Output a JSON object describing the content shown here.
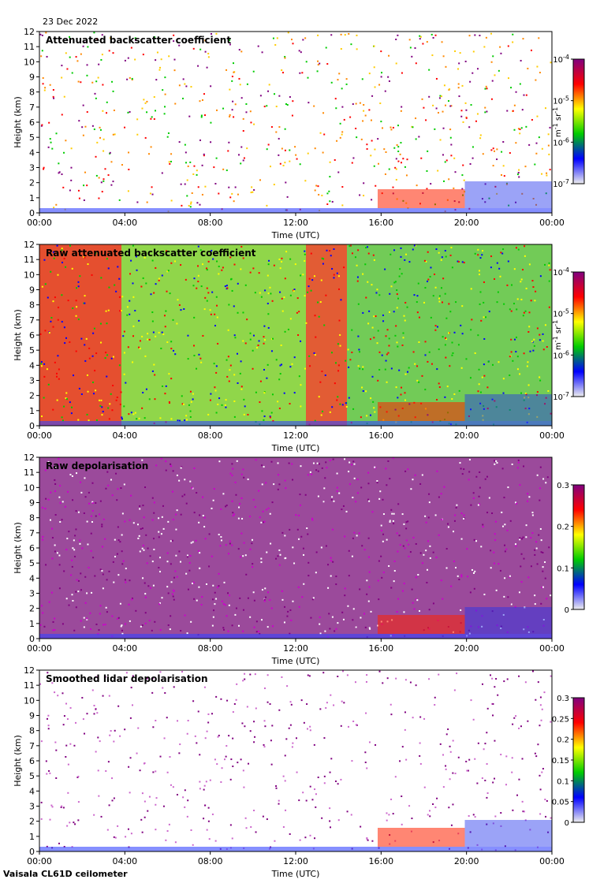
{
  "header": {
    "date": "23 Dec 2022"
  },
  "footer": {
    "instrument": "Vaisala CL61D ceilometer"
  },
  "colors": {
    "rainbow": [
      "#eeeeee",
      "#0000ff",
      "#00cc00",
      "#ffff00",
      "#ff0000",
      "#800080"
    ]
  },
  "chart_data": [
    {
      "type": "heatmap",
      "title": "Attenuated backscatter coefficient",
      "xlabel": "Time (UTC)",
      "ylabel": "Height (km)",
      "x_ticks": [
        "00:00",
        "04:00",
        "08:00",
        "12:00",
        "16:00",
        "20:00",
        "00:00"
      ],
      "y_ticks": [
        "0",
        "1",
        "2",
        "3",
        "4",
        "5",
        "6",
        "7",
        "8",
        "9",
        "10",
        "11",
        "12"
      ],
      "ylim": [
        0,
        12
      ],
      "colorbar": {
        "scale": "log",
        "range": [
          1e-07,
          0.0001
        ],
        "ticks": [
          {
            "base": "10",
            "exp": "-4"
          },
          {
            "base": "10",
            "exp": "-5"
          },
          {
            "base": "10",
            "exp": "-6"
          },
          {
            "base": "10",
            "exp": "-7"
          }
        ],
        "unit_parts": [
          "m",
          "-1",
          " sr",
          "-1"
        ]
      }
    },
    {
      "type": "heatmap",
      "title": "Raw attenuated backscatter coefficient",
      "xlabel": "Time (UTC)",
      "ylabel": "Height (km)",
      "x_ticks": [
        "00:00",
        "04:00",
        "08:00",
        "12:00",
        "16:00",
        "20:00",
        "00:00"
      ],
      "y_ticks": [
        "0",
        "1",
        "2",
        "3",
        "4",
        "5",
        "6",
        "7",
        "8",
        "9",
        "10",
        "11",
        "12"
      ],
      "ylim": [
        0,
        12
      ],
      "colorbar": {
        "scale": "log",
        "range": [
          1e-07,
          0.0001
        ],
        "ticks": [
          {
            "base": "10",
            "exp": "-4"
          },
          {
            "base": "10",
            "exp": "-5"
          },
          {
            "base": "10",
            "exp": "-6"
          },
          {
            "base": "10",
            "exp": "-7"
          }
        ],
        "unit_parts": [
          "m",
          "-1",
          " sr",
          "-1"
        ]
      }
    },
    {
      "type": "heatmap",
      "title": "Raw depolarisation",
      "xlabel": "Time (UTC)",
      "ylabel": "Height (km)",
      "x_ticks": [
        "00:00",
        "04:00",
        "08:00",
        "12:00",
        "16:00",
        "20:00",
        "00:00"
      ],
      "y_ticks": [
        "0",
        "1",
        "2",
        "3",
        "4",
        "5",
        "6",
        "7",
        "8",
        "9",
        "10",
        "11",
        "12"
      ],
      "ylim": [
        0,
        12
      ],
      "colorbar": {
        "scale": "linear",
        "range": [
          0,
          0.3
        ],
        "ticks": [
          "0.3",
          "0.2",
          "0.1",
          "0"
        ]
      }
    },
    {
      "type": "heatmap",
      "title": "Smoothed lidar depolarisation",
      "xlabel": "Time (UTC)",
      "ylabel": "Height (km)",
      "x_ticks": [
        "00:00",
        "04:00",
        "08:00",
        "12:00",
        "16:00",
        "20:00",
        "00:00"
      ],
      "y_ticks": [
        "0",
        "1",
        "2",
        "3",
        "4",
        "5",
        "6",
        "7",
        "8",
        "9",
        "10",
        "11",
        "12"
      ],
      "ylim": [
        0,
        12
      ],
      "colorbar": {
        "scale": "linear",
        "range": [
          0,
          0.3
        ],
        "ticks": [
          "0.3",
          "0.25",
          "0.2",
          "0.15",
          "0.1",
          "0.05",
          "0"
        ]
      }
    }
  ]
}
